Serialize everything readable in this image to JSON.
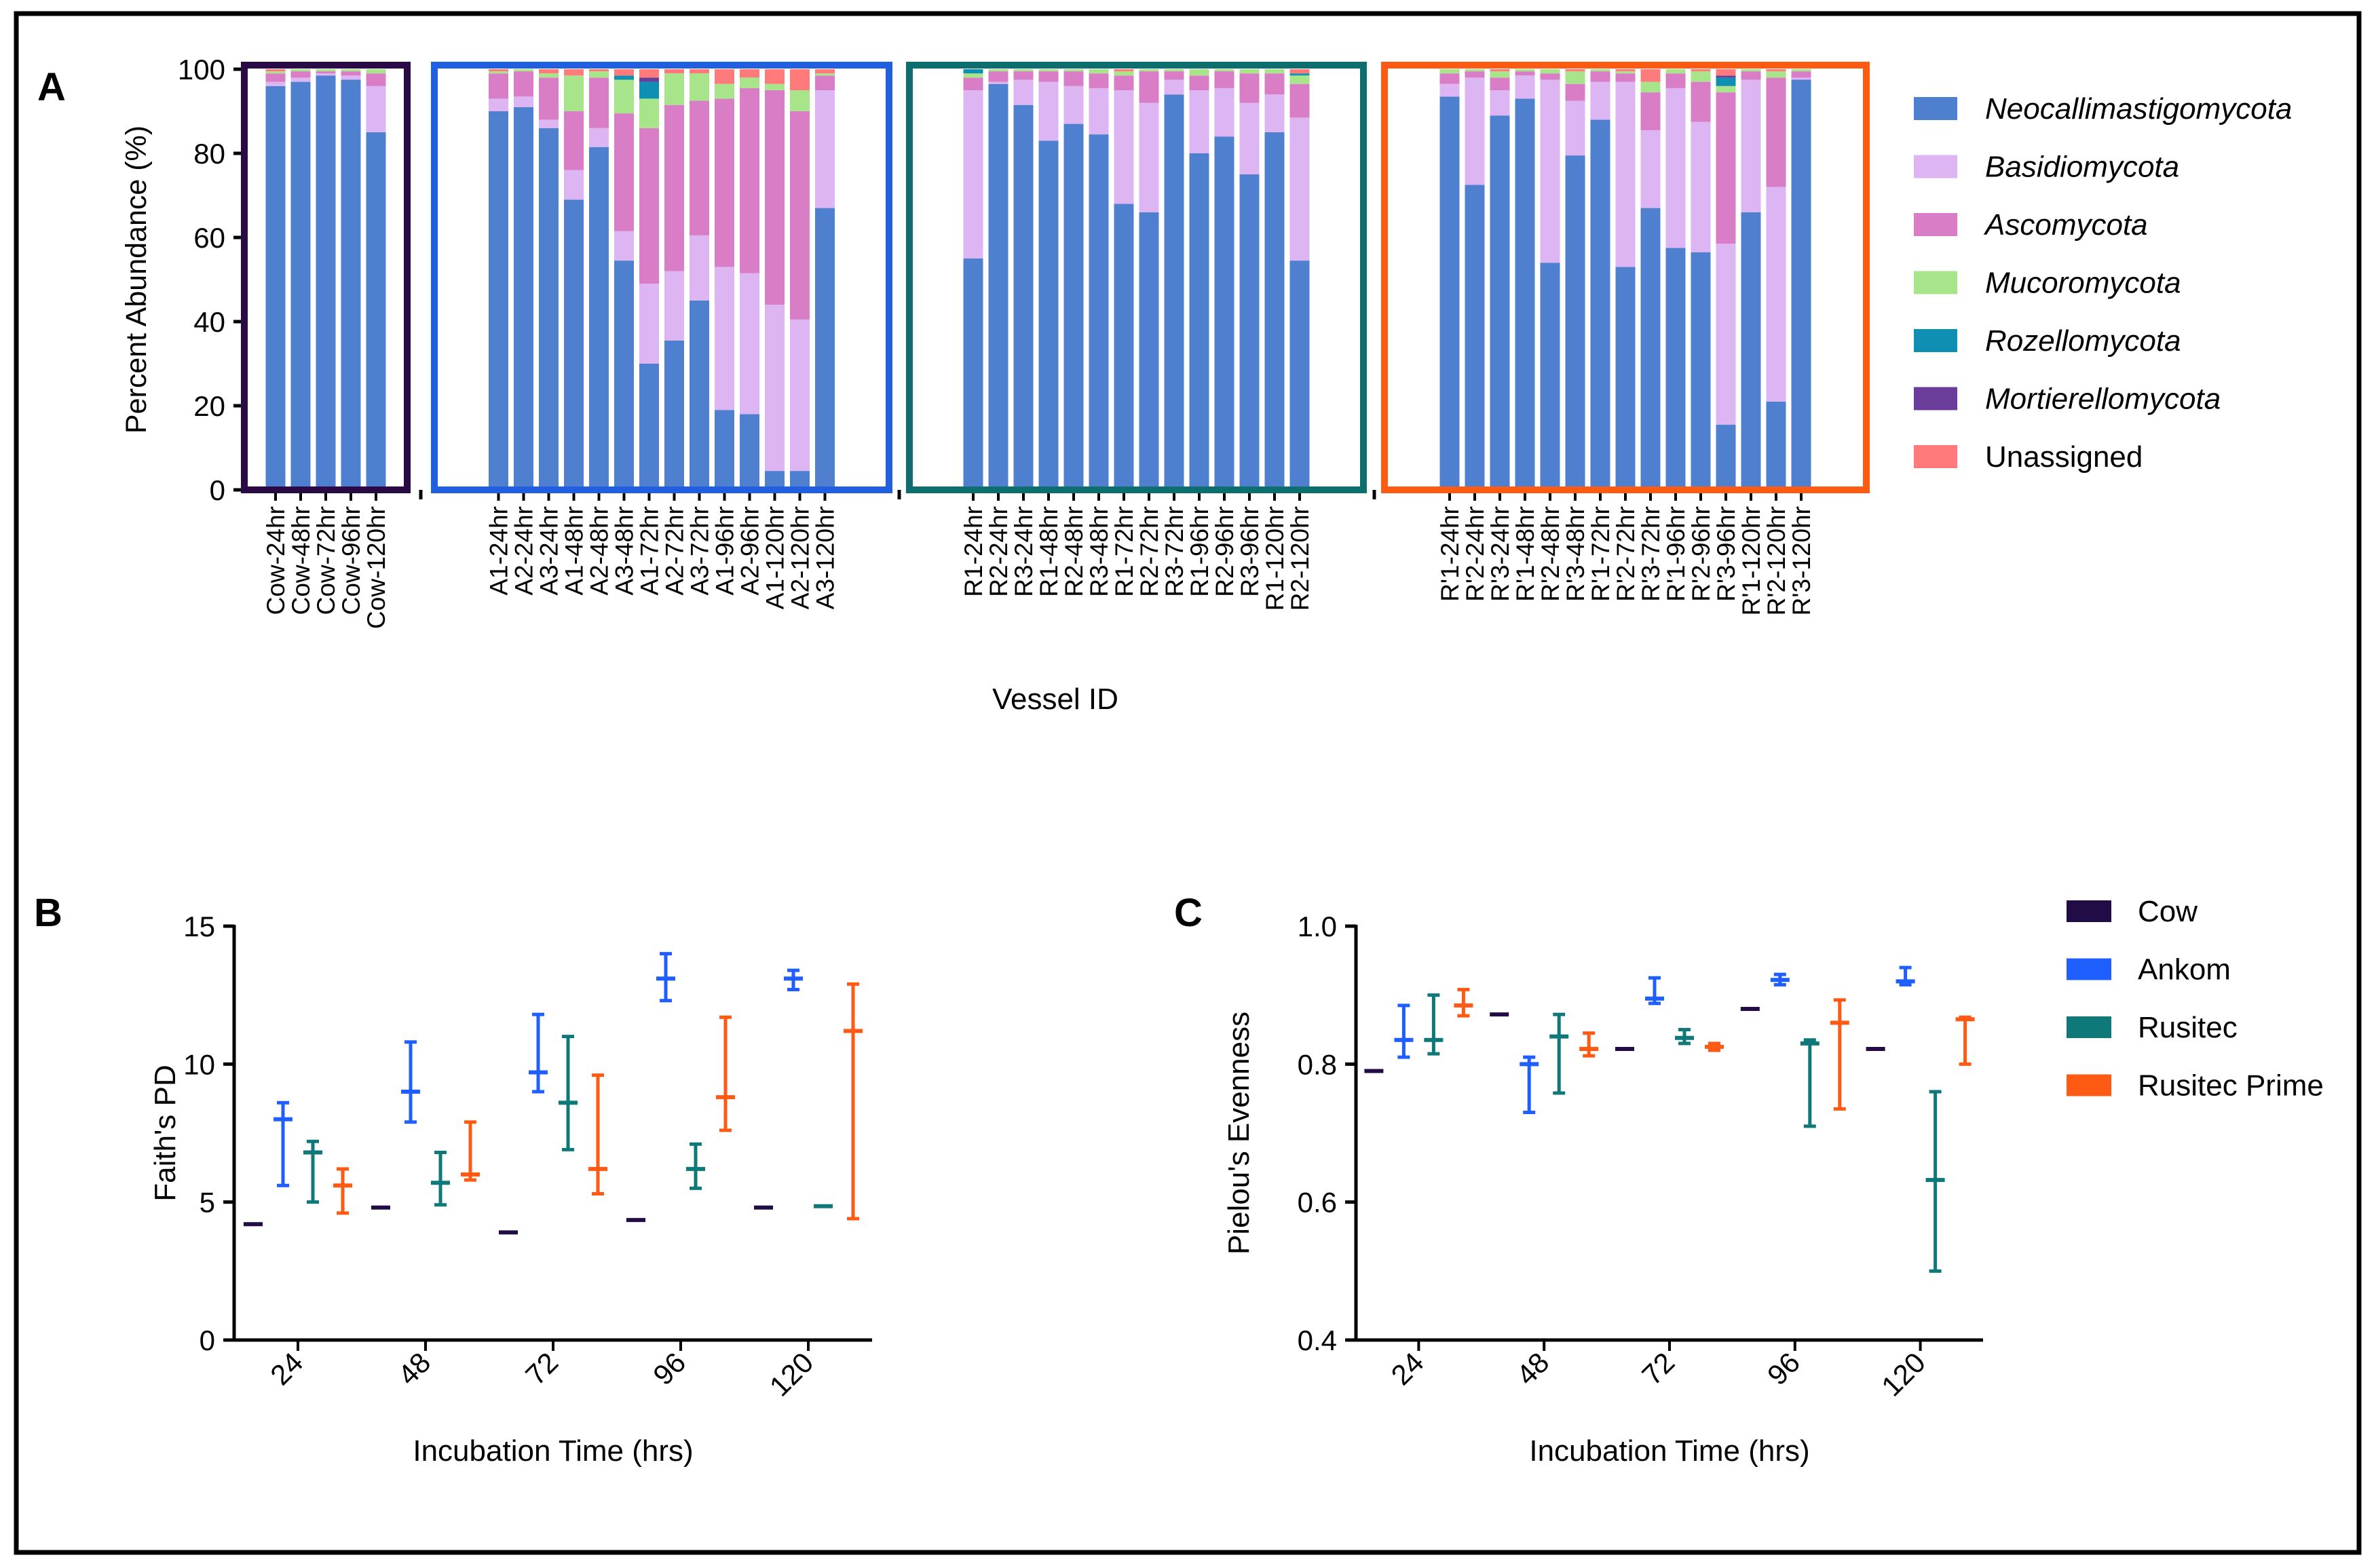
{
  "panel_labels": [
    "A",
    "B",
    "C"
  ],
  "colors": {
    "frame": "#000000",
    "axis": "#000000",
    "group_boxes": [
      "#2a0a45",
      "#1f5fe0",
      "#0d6e6e",
      "#ff5a12"
    ],
    "taxa": [
      "#4f7fcf",
      "#dcb5f2",
      "#d97ec6",
      "#a8e58a",
      "#0f8fb2",
      "#6b3d9a",
      "#ff7b7b"
    ],
    "systems": [
      "#220c45",
      "#1f5fff",
      "#0f7878",
      "#ff5a14"
    ]
  },
  "chart_data": [
    {
      "type": "bar",
      "stacked": true,
      "panel": "A",
      "title": "",
      "xlabel": "Vessel ID",
      "ylabel": "Percent Abundance (%)",
      "ylim": [
        0,
        100
      ],
      "yticks": [
        "0",
        "20",
        "40",
        "60",
        "80",
        "100"
      ],
      "legend_position": "right",
      "series": [
        {
          "name": "Neocallimastigomycota",
          "italic": true
        },
        {
          "name": "Basidiomycota",
          "italic": true
        },
        {
          "name": "Ascomycota",
          "italic": true
        },
        {
          "name": "Mucoromycota",
          "italic": true
        },
        {
          "name": "Rozellomycota",
          "italic": true
        },
        {
          "name": "Mortierellomycota",
          "italic": true
        },
        {
          "name": "Unassigned",
          "italic": false
        }
      ],
      "groups": [
        {
          "name": "Cow",
          "categories": [
            "Cow-24hr",
            "Cow-48hr",
            "Cow-72hr",
            "Cow-96hr",
            "Cow-120hr"
          ],
          "values": [
            [
              96,
              1,
              2,
              0.5,
              0,
              0,
              0.5
            ],
            [
              97,
              1,
              1.5,
              0.5,
              0,
              0,
              0
            ],
            [
              98.5,
              0.5,
              0.5,
              0.5,
              0,
              0,
              0
            ],
            [
              97.5,
              1,
              1,
              0.5,
              0,
              0,
              0
            ],
            [
              85,
              11,
              3,
              1,
              0,
              0,
              0
            ]
          ]
        },
        {
          "name": "Ankom",
          "categories": [
            "A1-24hr",
            "A2-24hr",
            "A3-24hr",
            "A1-48hr",
            "A2-48hr",
            "A3-48hr",
            "A1-72hr",
            "A2-72hr",
            "A3-72hr",
            "A1-96hr",
            "A2-96hr",
            "A1-120hr",
            "A2-120hr",
            "A3-120hr"
          ],
          "values": [
            [
              90,
              3,
              6,
              0.5,
              0,
              0,
              0.5
            ],
            [
              91,
              2.5,
              6,
              0.5,
              0,
              0,
              0
            ],
            [
              86,
              2,
              10,
              1,
              0,
              0,
              1
            ],
            [
              69,
              7,
              14,
              8.5,
              0,
              0,
              1.5
            ],
            [
              81.5,
              4.5,
              12,
              1.5,
              0,
              0,
              0.5
            ],
            [
              54.5,
              7,
              28,
              8,
              1,
              0,
              1.5
            ],
            [
              30,
              19,
              37,
              7,
              4,
              1,
              2
            ],
            [
              35.5,
              16.5,
              39.5,
              7.5,
              0,
              0,
              1
            ],
            [
              45,
              15.5,
              32,
              6.5,
              0,
              0,
              1
            ],
            [
              19,
              34,
              40,
              3.5,
              0,
              0,
              3.5
            ],
            [
              18,
              33.5,
              44,
              2.5,
              0,
              0,
              2
            ],
            [
              4.5,
              39.5,
              51,
              1.5,
              0,
              0,
              3.5
            ],
            [
              4.5,
              36,
              49.5,
              5,
              0,
              0,
              5
            ],
            [
              67,
              28,
              3.5,
              0.5,
              0,
              0,
              1
            ]
          ]
        },
        {
          "name": "Rusitec",
          "categories": [
            "R1-24hr",
            "R2-24hr",
            "R3-24hr",
            "R1-48hr",
            "R2-48hr",
            "R3-48hr",
            "R1-72hr",
            "R2-72hr",
            "R3-72hr",
            "R1-96hr",
            "R2-96hr",
            "R3-96hr",
            "R1-120hr",
            "R2-120hr"
          ],
          "values": [
            [
              55,
              40,
              3,
              1,
              1,
              0,
              0
            ],
            [
              96.5,
              0.5,
              2.5,
              0.5,
              0,
              0,
              0
            ],
            [
              91.5,
              6,
              2,
              0.5,
              0,
              0,
              0
            ],
            [
              83,
              14,
              2.5,
              0.5,
              0,
              0,
              0
            ],
            [
              87,
              9,
              3.5,
              0.5,
              0,
              0,
              0
            ],
            [
              84.5,
              11,
              3.5,
              1,
              0,
              0,
              0
            ],
            [
              68,
              27,
              3.5,
              1,
              0,
              0,
              0.5
            ],
            [
              66,
              26,
              7.5,
              0.5,
              0,
              0,
              0
            ],
            [
              94,
              3.5,
              2,
              0.5,
              0,
              0,
              0
            ],
            [
              80,
              15,
              3.5,
              1.5,
              0,
              0,
              0
            ],
            [
              84,
              11.5,
              4,
              0.5,
              0,
              0,
              0
            ],
            [
              75,
              17,
              7,
              1,
              0,
              0,
              0
            ],
            [
              85,
              9,
              5,
              1,
              0,
              0,
              0
            ],
            [
              54.5,
              34,
              8,
              2,
              0.5,
              0,
              1
            ]
          ]
        },
        {
          "name": "Rusitec Prime",
          "categories": [
            "R'1-24hr",
            "R'2-24hr",
            "R'3-24hr",
            "R'1-48hr",
            "R'2-48hr",
            "R'3-48hr",
            "R'1-72hr",
            "R'2-72hr",
            "R'3-72hr",
            "R'1-96hr",
            "R'2-96hr",
            "R'3-96hr",
            "R'1-120hr",
            "R'2-120hr",
            "R'3-120hr"
          ],
          "values": [
            [
              93.5,
              3,
              2.5,
              1,
              0,
              0,
              0
            ],
            [
              72.5,
              25.5,
              1.5,
              0.5,
              0,
              0,
              0
            ],
            [
              89,
              6,
              3,
              1.5,
              0,
              0,
              0.5
            ],
            [
              93,
              5.5,
              1,
              0.5,
              0,
              0,
              0
            ],
            [
              54,
              43.5,
              1.5,
              1,
              0,
              0,
              0
            ],
            [
              79.5,
              13,
              4,
              3,
              0,
              0,
              0.5
            ],
            [
              88,
              9,
              2.5,
              0.5,
              0,
              0,
              0
            ],
            [
              53,
              44,
              2,
              0.5,
              0,
              0,
              0.5
            ],
            [
              67,
              18.5,
              9,
              2.5,
              0,
              0,
              3
            ],
            [
              57.5,
              38,
              3.5,
              1,
              0,
              0,
              0
            ],
            [
              56.5,
              31,
              9.5,
              2.5,
              0,
              0,
              0.5
            ],
            [
              15.5,
              43,
              36,
              1.5,
              2,
              0.5,
              1.5
            ],
            [
              66,
              31.5,
              2,
              0.5,
              0,
              0,
              0
            ],
            [
              21,
              51,
              26,
              1.5,
              0,
              0,
              0.5
            ],
            [
              97.5,
              0.5,
              1.5,
              0.5,
              0,
              0,
              0
            ]
          ]
        }
      ]
    },
    {
      "type": "errorbar",
      "panel": "B",
      "title": "",
      "xlabel": "Incubation Time (hrs)",
      "ylabel": "Faith's PD",
      "ylim": [
        0,
        15
      ],
      "yticks": [
        "0",
        "5",
        "10",
        "15"
      ],
      "categories": [
        "24",
        "48",
        "72",
        "96",
        "120"
      ],
      "series": [
        {
          "name": "Cow",
          "mean": [
            4.2,
            4.8,
            3.9,
            4.35,
            4.8
          ],
          "low": [
            4.2,
            4.8,
            3.9,
            4.35,
            4.8
          ],
          "high": [
            4.2,
            4.8,
            3.9,
            4.35,
            4.8
          ]
        },
        {
          "name": "Ankom",
          "mean": [
            8.0,
            9.0,
            9.7,
            13.1,
            13.1
          ],
          "low": [
            5.6,
            7.9,
            9.0,
            12.3,
            12.7
          ],
          "high": [
            8.6,
            10.8,
            11.8,
            14.0,
            13.4
          ]
        },
        {
          "name": "Rusitec",
          "mean": [
            6.8,
            5.7,
            8.6,
            6.2,
            4.85
          ],
          "low": [
            5.0,
            4.9,
            6.9,
            5.5,
            4.85
          ],
          "high": [
            7.2,
            6.8,
            11.0,
            7.1,
            4.85
          ]
        },
        {
          "name": "Rusitec Prime",
          "mean": [
            5.6,
            6.0,
            6.2,
            8.8,
            11.2
          ],
          "low": [
            4.6,
            5.8,
            5.3,
            7.6,
            4.4
          ],
          "high": [
            6.2,
            7.9,
            9.6,
            11.7,
            12.9
          ]
        }
      ]
    },
    {
      "type": "errorbar",
      "panel": "C",
      "title": "",
      "xlabel": "Incubation Time (hrs)",
      "ylabel": "Pielou's Evenness",
      "ylim": [
        0.4,
        1.0
      ],
      "yticks": [
        "0.4",
        "0.6",
        "0.8",
        "1.0"
      ],
      "categories": [
        "24",
        "48",
        "72",
        "96",
        "120"
      ],
      "legend_position": "right",
      "series": [
        {
          "name": "Cow",
          "mean": [
            0.79,
            0.872,
            0.822,
            0.88,
            0.822
          ],
          "low": [
            0.79,
            0.872,
            0.822,
            0.88,
            0.822
          ],
          "high": [
            0.79,
            0.872,
            0.822,
            0.88,
            0.822
          ]
        },
        {
          "name": "Ankom",
          "mean": [
            0.835,
            0.8,
            0.895,
            0.922,
            0.92
          ],
          "low": [
            0.81,
            0.73,
            0.888,
            0.915,
            0.915
          ],
          "high": [
            0.885,
            0.81,
            0.925,
            0.93,
            0.94
          ]
        },
        {
          "name": "Rusitec",
          "mean": [
            0.835,
            0.84,
            0.838,
            0.83,
            0.632
          ],
          "low": [
            0.815,
            0.758,
            0.83,
            0.71,
            0.5
          ],
          "high": [
            0.9,
            0.872,
            0.85,
            0.835,
            0.76
          ]
        },
        {
          "name": "Rusitec Prime",
          "mean": [
            0.885,
            0.822,
            0.825,
            0.86,
            0.865
          ],
          "low": [
            0.87,
            0.812,
            0.82,
            0.735,
            0.8
          ],
          "high": [
            0.908,
            0.845,
            0.83,
            0.893,
            0.868
          ]
        }
      ]
    }
  ]
}
